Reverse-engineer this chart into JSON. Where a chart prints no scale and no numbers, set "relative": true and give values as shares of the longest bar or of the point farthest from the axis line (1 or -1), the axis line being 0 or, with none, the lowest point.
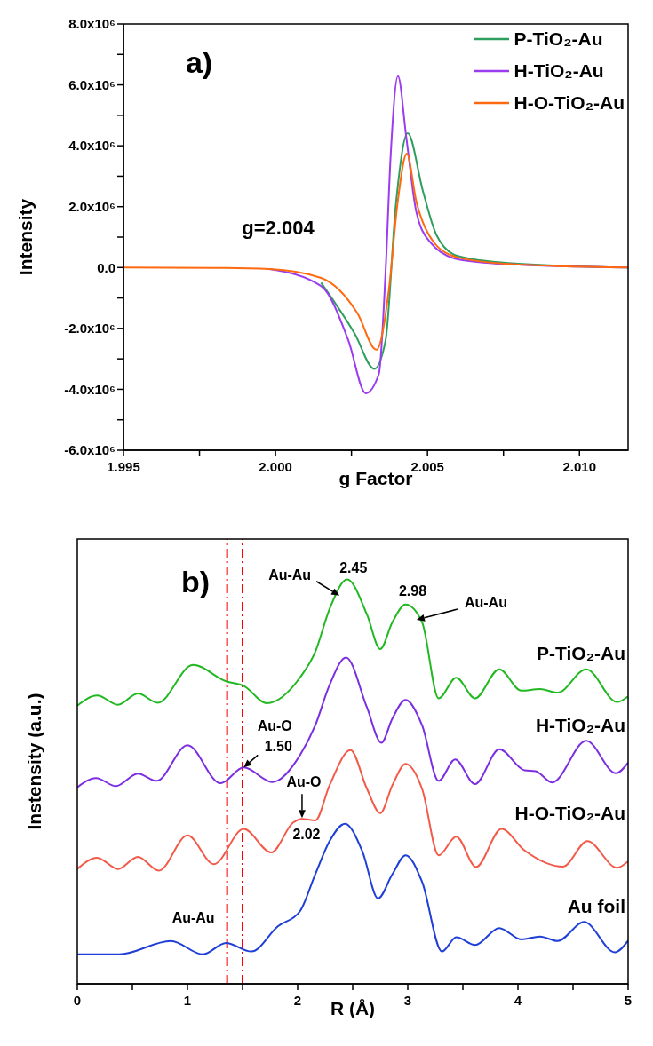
{
  "chart_data": [
    {
      "type": "line",
      "title": "a)",
      "xlabel": "g Factor",
      "ylabel": "Intensity",
      "annotations": [
        "g=2.004"
      ],
      "legend": "top right",
      "xlim": [
        1.995,
        2.0116
      ],
      "xticks": [
        {
          "value": 1.995,
          "label": "1.995"
        },
        {
          "value": 1.9975,
          "label": null
        },
        {
          "value": 2.0,
          "label": "2.000"
        },
        {
          "value": 2.0025,
          "label": null
        },
        {
          "value": 2.005,
          "label": "2.005"
        },
        {
          "value": 2.0075,
          "label": null
        },
        {
          "value": 2.01,
          "label": "2.010"
        }
      ],
      "ylim": [
        -6000000,
        8000000
      ],
      "yticks": [
        {
          "value": -6000000,
          "label": "-6.0x10⁶"
        },
        {
          "value": -5000000,
          "label": null
        },
        {
          "value": -4000000,
          "label": "-4.0x10⁶"
        },
        {
          "value": -3000000,
          "label": null
        },
        {
          "value": -2000000,
          "label": "-2.0x10⁶"
        },
        {
          "value": -1000000,
          "label": null
        },
        {
          "value": 0,
          "label": "0.0"
        },
        {
          "value": 1000000,
          "label": null
        },
        {
          "value": 2000000,
          "label": "2.0x10⁶"
        },
        {
          "value": 3000000,
          "label": null
        },
        {
          "value": 4000000,
          "label": "4.0x10⁶"
        },
        {
          "value": 5000000,
          "label": null
        },
        {
          "value": 6000000,
          "label": "6.0x10⁶"
        },
        {
          "value": 7000000,
          "label": null
        },
        {
          "value": 8000000,
          "label": "8.0x10⁶"
        }
      ],
      "series": [
        {
          "name": "P-TiO₂-Au",
          "color": "#2e9e5e",
          "x": [
            2.0015,
            2.00261,
            2.00325,
            2.00362,
            2.00396,
            2.00435,
            2.00485,
            2.0053,
            2.00597,
            2.00765,
            2.0116
          ],
          "values": [
            -500000,
            -2180000,
            -3330000,
            -2400000,
            2070000,
            4410000,
            2510000,
            1060000,
            390000,
            150000,
            0
          ]
        },
        {
          "name": "H-TiO₂-Au",
          "color": "#9b3cf0",
          "x": [
            1.9998,
            2.0015,
            2.0024,
            2.00297,
            2.0034,
            2.00362,
            2.00379,
            2.00403,
            2.0043,
            2.00463,
            2.00508,
            2.00597,
            2.00765,
            2.0116
          ],
          "values": [
            -50000,
            -610000,
            -2400000,
            -4130000,
            -3500000,
            -170000,
            3700000,
            6290000,
            4300000,
            1840000,
            840000,
            280000,
            110000,
            0
          ]
        },
        {
          "name": "H-O-TiO₂-Au",
          "color": "#ff6a10",
          "x": [
            1.995,
            1.998,
            1.9998,
            2.0015,
            2.0027,
            2.00332,
            2.00373,
            2.00401,
            2.00432,
            2.00463,
            2.0052,
            2.00597,
            2.00765,
            2.0116
          ],
          "values": [
            0,
            -10000,
            -50000,
            -340000,
            -1510000,
            -2700000,
            -730000,
            2070000,
            3740000,
            2180000,
            840000,
            340000,
            120000,
            0
          ]
        }
      ]
    },
    {
      "type": "line",
      "title": "b)",
      "xlabel": "R (Å)",
      "ylabel": "Instensity (a.u.)",
      "relative": true,
      "tick_labels": "x",
      "xlim": [
        0,
        5
      ],
      "xticks": [
        0,
        {
          "value": 0.5,
          "label": null
        },
        1,
        {
          "value": 1.5,
          "label": null
        },
        2,
        {
          "value": 2.5,
          "label": null
        },
        3,
        {
          "value": 3.5,
          "label": null
        },
        4,
        {
          "value": 4.5,
          "label": null
        },
        5
      ],
      "ref_lines": [
        {
          "axis": "x",
          "value": 1.5,
          "color": "#ff0000",
          "line_style": "dashed"
        },
        {
          "axis": "x",
          "value": 1.36,
          "color": "#ff0000",
          "line_style": "dashed"
        }
      ],
      "annotations": [
        {
          "text": "Au-Au",
          "x": 2.38,
          "y": 0.96
        },
        {
          "text": "2.45",
          "x": 2.45,
          "y": 1.0
        },
        {
          "text": "2.98",
          "x": 2.98,
          "y": 0.938
        },
        {
          "text": "Au-Au",
          "x": 3.08,
          "y": 0.9
        },
        {
          "text": "Au-O",
          "x": 1.51,
          "y": 0.535
        },
        {
          "text": "1.50",
          "x": 1.51,
          "y": 0.535
        },
        {
          "text": "Au-O",
          "x": 2.04,
          "y": 0.41
        },
        {
          "text": "2.02",
          "x": 2.04,
          "y": 0.41
        },
        {
          "text": "Au-Au",
          "x": 1.36,
          "y": 0.165
        }
      ],
      "series": [
        {
          "name": "P-TiO₂-Au",
          "color": "#22b822",
          "x": [
            0,
            0.18,
            0.37,
            0.55,
            0.73,
            1.05,
            1.35,
            1.51,
            1.72,
            2.02,
            2.16,
            2.29,
            2.45,
            2.63,
            2.75,
            2.86,
            2.98,
            3.13,
            3.28,
            3.44,
            3.61,
            3.83,
            4.03,
            4.2,
            4.36,
            4.62,
            4.9,
            5
          ],
          "values": [
            0.688,
            0.713,
            0.69,
            0.718,
            0.695,
            0.789,
            0.748,
            0.737,
            0.694,
            0.757,
            0.821,
            0.927,
            1.0,
            0.913,
            0.828,
            0.894,
            0.938,
            0.894,
            0.706,
            0.757,
            0.706,
            0.778,
            0.725,
            0.729,
            0.72,
            0.778,
            0.697,
            0.711
          ]
        },
        {
          "name": "H-TiO₂-Au",
          "color": "#7b2fe0",
          "x": [
            0,
            0.17,
            0.35,
            0.55,
            0.72,
            1.0,
            1.3,
            1.51,
            1.77,
            2.02,
            2.16,
            2.29,
            2.44,
            2.63,
            2.76,
            2.86,
            2.98,
            3.13,
            3.28,
            3.43,
            3.61,
            3.83,
            4.06,
            4.16,
            4.31,
            4.62,
            4.89,
            5
          ],
          "values": [
            0.486,
            0.509,
            0.489,
            0.52,
            0.502,
            0.59,
            0.496,
            0.535,
            0.499,
            0.565,
            0.639,
            0.739,
            0.807,
            0.683,
            0.596,
            0.656,
            0.702,
            0.639,
            0.502,
            0.555,
            0.494,
            0.58,
            0.528,
            0.526,
            0.498,
            0.601,
            0.521,
            0.547
          ]
        },
        {
          "name": "H-O-TiO₂-Au",
          "color": "#f25a4a",
          "x": [
            0,
            0.18,
            0.37,
            0.55,
            0.74,
            1.0,
            1.24,
            1.51,
            1.76,
            1.96,
            2.04,
            2.16,
            2.29,
            2.48,
            2.63,
            2.75,
            2.86,
            2.98,
            3.13,
            3.28,
            3.44,
            3.62,
            3.85,
            4.06,
            4.41,
            4.63,
            4.9,
            5
          ],
          "values": [
            0.284,
            0.312,
            0.284,
            0.314,
            0.28,
            0.367,
            0.296,
            0.383,
            0.325,
            0.399,
            0.408,
            0.404,
            0.491,
            0.578,
            0.482,
            0.422,
            0.491,
            0.544,
            0.482,
            0.318,
            0.364,
            0.289,
            0.383,
            0.33,
            0.29,
            0.353,
            0.287,
            0.303
          ]
        },
        {
          "name": "Au foil",
          "color": "#1f3fd6",
          "x": [
            0,
            0.38,
            0.85,
            1.14,
            1.35,
            1.58,
            1.82,
            2.02,
            2.16,
            2.29,
            2.43,
            2.59,
            2.73,
            2.86,
            2.98,
            3.13,
            3.31,
            3.44,
            3.61,
            3.83,
            4.03,
            4.2,
            4.36,
            4.6,
            4.88,
            5
          ],
          "values": [
            0.073,
            0.073,
            0.106,
            0.073,
            0.101,
            0.08,
            0.142,
            0.179,
            0.271,
            0.353,
            0.396,
            0.326,
            0.211,
            0.271,
            0.318,
            0.252,
            0.08,
            0.115,
            0.096,
            0.138,
            0.11,
            0.117,
            0.106,
            0.153,
            0.078,
            0.107
          ]
        }
      ]
    }
  ]
}
